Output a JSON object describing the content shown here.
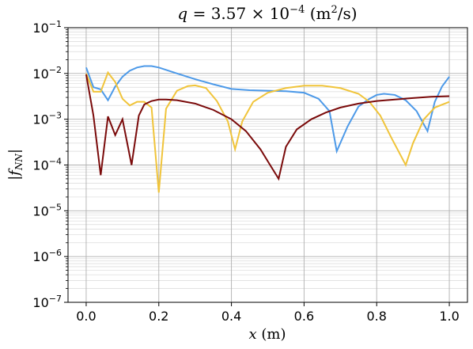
{
  "chart_data": {
    "type": "line",
    "title": "q = 3.57 × 10⁻⁴ (m²/s)",
    "title_parts": {
      "var": "q",
      "eq": " = 3.57 × 10",
      "exp": "−4",
      "unit_pre": " (m",
      "unit_exp": "2",
      "unit_post": "/s)"
    },
    "xlabel": "x (m)",
    "xlabel_parts": {
      "var": "x",
      "unit": " (m)"
    },
    "ylabel": "|f_NN|",
    "ylabel_parts": {
      "open": "|",
      "var": "f",
      "sub": "NN",
      "close": "|"
    },
    "xlim": [
      -0.05,
      1.05
    ],
    "ylim": [
      1e-07,
      0.1
    ],
    "yscale": "log",
    "grid": true,
    "x_ticks": [
      0.0,
      0.2,
      0.4,
      0.6,
      0.8,
      1.0
    ],
    "x_tick_labels": [
      "0.0",
      "0.2",
      "0.4",
      "0.6",
      "0.8",
      "1.0"
    ],
    "y_ticks": [
      1e-07,
      1e-06,
      1e-05,
      0.0001,
      0.001,
      0.01,
      0.1
    ],
    "y_tick_labels": [
      {
        "base": "10",
        "exp": "−7"
      },
      {
        "base": "10",
        "exp": "−6"
      },
      {
        "base": "10",
        "exp": "−5"
      },
      {
        "base": "10",
        "exp": "−4"
      },
      {
        "base": "10",
        "exp": "−3"
      },
      {
        "base": "10",
        "exp": "−2"
      },
      {
        "base": "10",
        "exp": "−1"
      }
    ],
    "series": [
      {
        "color": "#4c99e8",
        "x": [
          0.0,
          0.02,
          0.04,
          0.06,
          0.08,
          0.1,
          0.12,
          0.14,
          0.16,
          0.18,
          0.2,
          0.25,
          0.3,
          0.35,
          0.4,
          0.45,
          0.5,
          0.55,
          0.6,
          0.64,
          0.67,
          0.69,
          0.72,
          0.75,
          0.78,
          0.8,
          0.82,
          0.85,
          0.88,
          0.91,
          0.94,
          0.96,
          0.98,
          1.0
        ],
        "y": [
          0.0135,
          0.005,
          0.0045,
          0.0026,
          0.0052,
          0.0085,
          0.0115,
          0.0135,
          0.0145,
          0.0145,
          0.0135,
          0.01,
          0.0075,
          0.0058,
          0.0046,
          0.0043,
          0.0042,
          0.0041,
          0.0038,
          0.0028,
          0.0015,
          0.0002,
          0.0007,
          0.0019,
          0.0028,
          0.0034,
          0.0036,
          0.0034,
          0.0026,
          0.0015,
          0.00055,
          0.0024,
          0.0052,
          0.0085
        ]
      },
      {
        "color": "#f0c43a",
        "x": [
          0.0,
          0.02,
          0.04,
          0.06,
          0.08,
          0.1,
          0.12,
          0.14,
          0.16,
          0.18,
          0.2,
          0.22,
          0.25,
          0.28,
          0.3,
          0.33,
          0.36,
          0.39,
          0.41,
          0.43,
          0.46,
          0.5,
          0.55,
          0.6,
          0.65,
          0.7,
          0.75,
          0.78,
          0.81,
          0.84,
          0.86,
          0.88,
          0.9,
          0.93,
          0.96,
          1.0
        ],
        "y": [
          0.01,
          0.004,
          0.004,
          0.0105,
          0.0065,
          0.0028,
          0.002,
          0.0024,
          0.0024,
          0.0018,
          2.5e-05,
          0.0017,
          0.0042,
          0.0053,
          0.0055,
          0.0048,
          0.0025,
          0.0009,
          0.00022,
          0.0009,
          0.0024,
          0.0038,
          0.0048,
          0.0054,
          0.0054,
          0.0048,
          0.0036,
          0.0024,
          0.0012,
          0.0004,
          0.0002,
          0.0001,
          0.0003,
          0.001,
          0.0018,
          0.0024
        ]
      },
      {
        "color": "#7a0a0a",
        "x": [
          0.0,
          0.02,
          0.04,
          0.06,
          0.08,
          0.1,
          0.125,
          0.145,
          0.16,
          0.18,
          0.2,
          0.22,
          0.25,
          0.3,
          0.35,
          0.4,
          0.44,
          0.48,
          0.51,
          0.53,
          0.55,
          0.58,
          0.62,
          0.66,
          0.7,
          0.75,
          0.8,
          0.85,
          0.9,
          0.95,
          1.0
        ],
        "y": [
          0.0095,
          0.0012,
          6e-05,
          0.00115,
          0.00045,
          0.001,
          0.0001,
          0.0012,
          0.0021,
          0.0025,
          0.0027,
          0.0027,
          0.0026,
          0.0022,
          0.0016,
          0.001,
          0.00055,
          0.00022,
          9e-05,
          5e-05,
          0.00025,
          0.0006,
          0.001,
          0.0014,
          0.0018,
          0.0022,
          0.0025,
          0.0027,
          0.0029,
          0.0031,
          0.0032
        ]
      }
    ]
  }
}
